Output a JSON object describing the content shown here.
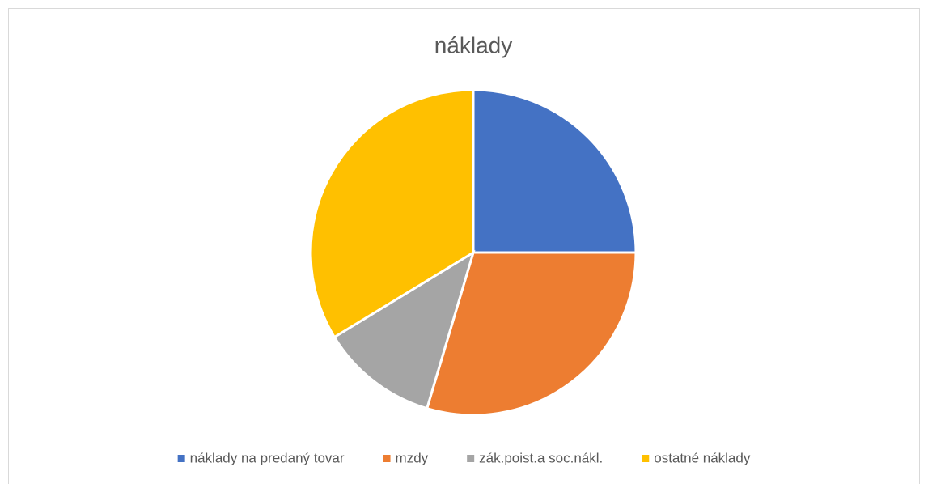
{
  "chart_data": {
    "type": "pie",
    "title": "náklady",
    "categories": [
      "náklady na predaný tovar",
      "mzdy",
      "zák.poist.a soc.nákl.",
      "ostatné náklady"
    ],
    "values": [
      25,
      29.6,
      11.7,
      33.7
    ],
    "colors": [
      "#4472c4",
      "#ed7d31",
      "#a5a5a5",
      "#ffc000"
    ],
    "legend": "bottom"
  }
}
